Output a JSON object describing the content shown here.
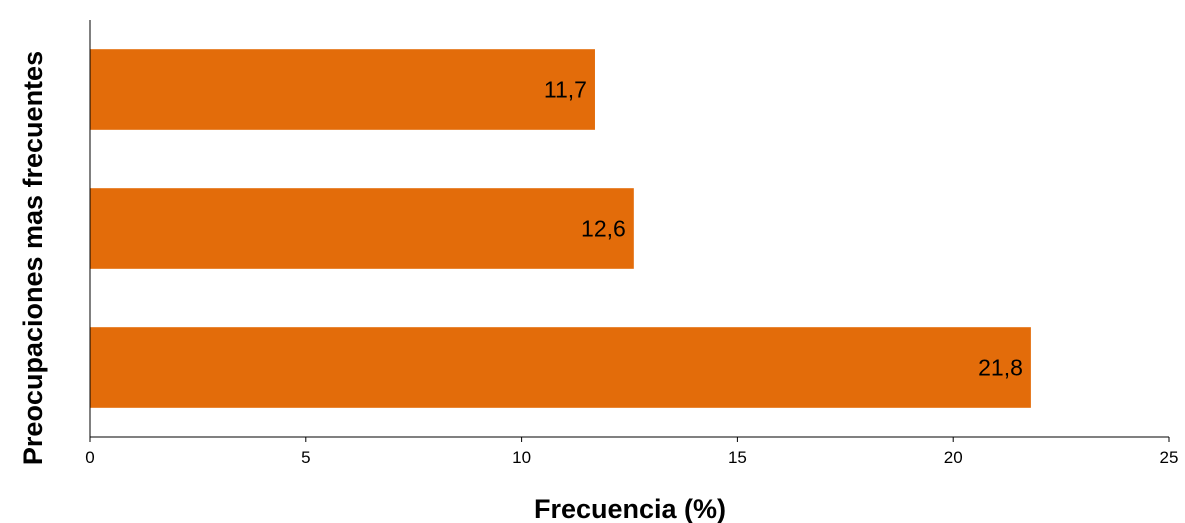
{
  "chart_data": {
    "type": "bar",
    "orientation": "horizontal",
    "categories": [
      "",
      "",
      ""
    ],
    "values": [
      11.7,
      12.6,
      21.8
    ],
    "data_labels": [
      "11,7",
      "12,6",
      "21,8"
    ],
    "title": "",
    "xlabel": "Frecuencia (%)",
    "ylabel": "Preocupaciones mas frecuentes",
    "xlim": [
      0,
      25
    ],
    "xticks": [
      0,
      5,
      10,
      15,
      20,
      25
    ],
    "xtick_labels": [
      "0",
      "5",
      "10",
      "15",
      "20",
      "25"
    ],
    "grid": false,
    "legend": "none",
    "bar_color": "#E36C0A"
  }
}
